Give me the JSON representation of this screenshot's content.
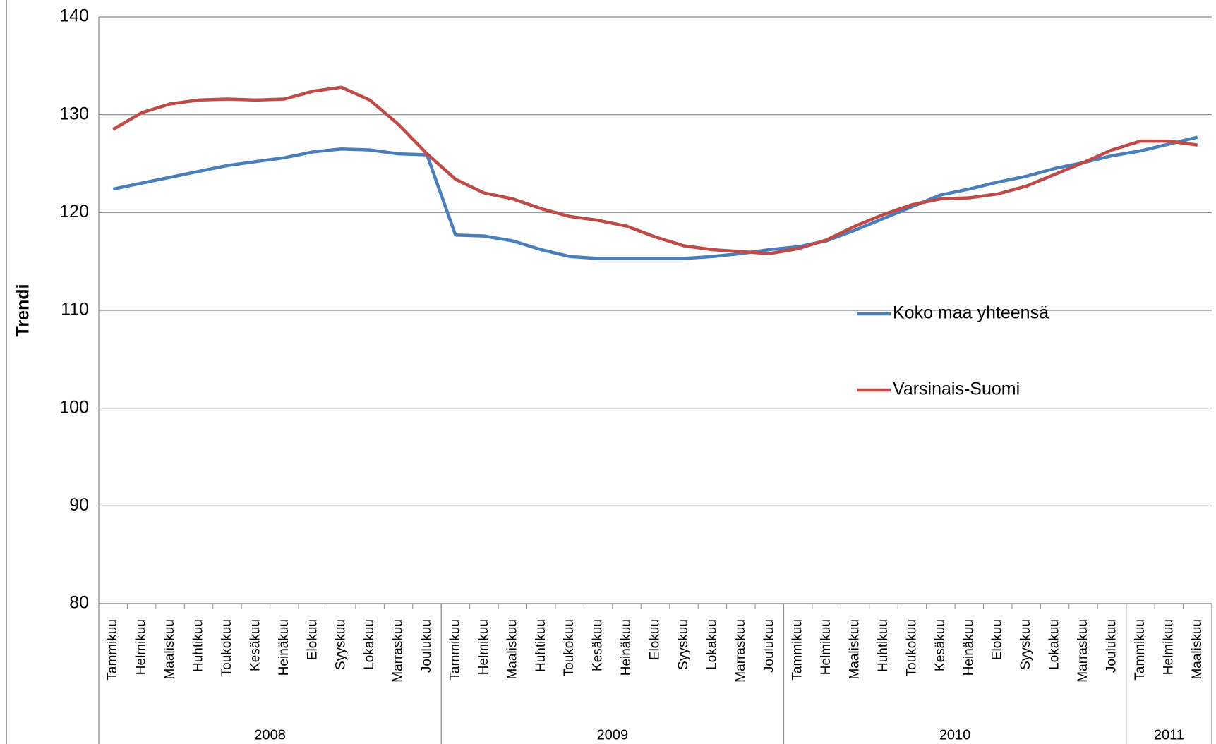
{
  "chart_data": {
    "type": "line",
    "y_label": "Trendi",
    "category_groups": [
      {
        "label": "2008",
        "categories": [
          "Tammikuu",
          "Helmikuu",
          "Maaliskuu",
          "Huhtikuu",
          "Toukokuu",
          "Kesäkuu",
          "Heinäkuu",
          "Elokuu",
          "Syyskuu",
          "Lokakuu",
          "Marraskuu",
          "Joulukuu"
        ]
      },
      {
        "label": "2009",
        "categories": [
          "Tammikuu",
          "Helmikuu",
          "Maaliskuu",
          "Huhtikuu",
          "Toukokuu",
          "Kesäkuu",
          "Heinäkuu",
          "Elokuu",
          "Syyskuu",
          "Lokakuu",
          "Marraskuu",
          "Joulukuu"
        ]
      },
      {
        "label": "2010",
        "categories": [
          "Tammikuu",
          "Helmikuu",
          "Maaliskuu",
          "Huhtikuu",
          "Toukokuu",
          "Kesäkuu",
          "Heinäkuu",
          "Elokuu",
          "Syyskuu",
          "Lokakuu",
          "Marraskuu",
          "Joulukuu"
        ]
      },
      {
        "label": "2011",
        "categories": [
          "Tammikuu",
          "Helmikuu",
          "Maaliskuu"
        ]
      }
    ],
    "series": [
      {
        "name": "Koko maa yhteensä",
        "color": "#4a7ebb",
        "values": [
          122.4,
          123.0,
          123.6,
          124.2,
          124.8,
          125.2,
          125.6,
          126.2,
          126.5,
          126.4,
          126.0,
          125.9,
          117.7,
          117.6,
          117.1,
          116.2,
          115.5,
          115.3,
          115.3,
          115.3,
          115.3,
          115.5,
          115.8,
          116.2,
          116.5,
          117.1,
          118.2,
          119.4,
          120.6,
          121.8,
          122.4,
          123.1,
          123.7,
          124.5,
          125.1,
          125.8,
          126.3,
          127.0,
          127.7
        ]
      },
      {
        "name": "Varsinais-Suomi",
        "color": "#be4b48",
        "values": [
          128.5,
          130.2,
          131.1,
          131.5,
          131.6,
          131.5,
          131.6,
          132.4,
          132.8,
          131.5,
          129.0,
          126.0,
          123.4,
          122.0,
          121.4,
          120.4,
          119.6,
          119.2,
          118.6,
          117.5,
          116.6,
          116.2,
          116.0,
          115.8,
          116.3,
          117.2,
          118.6,
          119.8,
          120.8,
          121.4,
          121.5,
          121.9,
          122.7,
          123.9,
          125.1,
          126.4,
          127.3,
          127.3,
          126.9
        ]
      }
    ],
    "ylim": [
      80,
      140
    ],
    "yticks": [
      80,
      90,
      100,
      110,
      120,
      130,
      140
    ],
    "grid": true,
    "legend": "right"
  }
}
